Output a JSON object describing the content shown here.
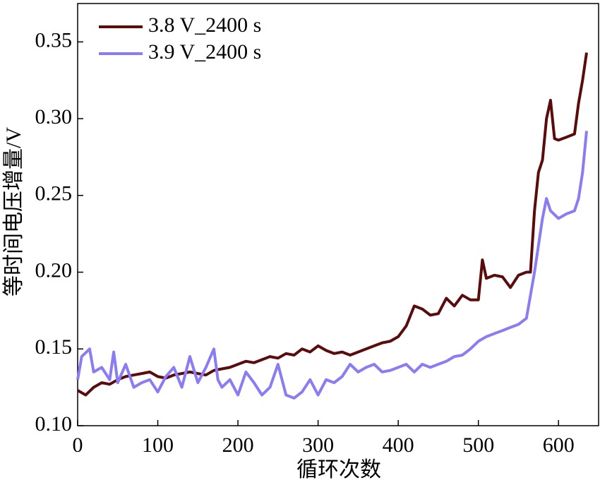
{
  "chart_data": {
    "type": "line",
    "x_label": "循环次数",
    "y_label": "等时间电压增量/V",
    "xlim": [
      0,
      650
    ],
    "ylim": [
      0.1,
      0.375
    ],
    "xticks": [
      0,
      100,
      200,
      300,
      400,
      500,
      600
    ],
    "yticks": [
      {
        "value": 0.1,
        "label": "0.10"
      },
      {
        "value": 0.15,
        "label": "0.15"
      },
      {
        "value": 0.2,
        "label": "0.20"
      },
      {
        "value": 0.25,
        "label": "0.25"
      },
      {
        "value": 0.3,
        "label": "0.30"
      },
      {
        "value": 0.35,
        "label": "0.35"
      }
    ],
    "legend": "upper left",
    "series": [
      {
        "name": "3.8 V_2400 s",
        "color": "#5a0c0c",
        "x": [
          0,
          10,
          20,
          30,
          40,
          50,
          60,
          70,
          80,
          90,
          100,
          110,
          120,
          130,
          140,
          150,
          160,
          170,
          180,
          190,
          200,
          210,
          220,
          230,
          240,
          250,
          260,
          270,
          280,
          290,
          300,
          310,
          320,
          330,
          340,
          350,
          360,
          370,
          380,
          390,
          400,
          410,
          420,
          430,
          440,
          450,
          460,
          470,
          480,
          490,
          500,
          505,
          510,
          520,
          530,
          540,
          550,
          560,
          565,
          570,
          575,
          580,
          585,
          590,
          595,
          600,
          610,
          620,
          625,
          630,
          635
        ],
        "values": [
          0.123,
          0.12,
          0.125,
          0.128,
          0.127,
          0.13,
          0.132,
          0.133,
          0.134,
          0.135,
          0.132,
          0.131,
          0.133,
          0.134,
          0.135,
          0.134,
          0.133,
          0.136,
          0.137,
          0.138,
          0.14,
          0.142,
          0.141,
          0.143,
          0.145,
          0.144,
          0.147,
          0.146,
          0.15,
          0.148,
          0.152,
          0.149,
          0.147,
          0.148,
          0.146,
          0.148,
          0.15,
          0.152,
          0.154,
          0.155,
          0.158,
          0.165,
          0.178,
          0.176,
          0.172,
          0.173,
          0.183,
          0.178,
          0.185,
          0.182,
          0.182,
          0.208,
          0.196,
          0.198,
          0.197,
          0.19,
          0.198,
          0.2,
          0.2,
          0.24,
          0.265,
          0.273,
          0.3,
          0.312,
          0.287,
          0.286,
          0.288,
          0.29,
          0.31,
          0.325,
          0.343
        ]
      },
      {
        "name": "3.9 V_2400 s",
        "color": "#8a7cf2",
        "x": [
          0,
          5,
          15,
          20,
          30,
          40,
          45,
          50,
          60,
          70,
          80,
          90,
          100,
          110,
          120,
          130,
          140,
          150,
          160,
          170,
          175,
          180,
          190,
          200,
          210,
          220,
          230,
          240,
          250,
          260,
          270,
          280,
          290,
          300,
          310,
          320,
          330,
          340,
          350,
          360,
          370,
          380,
          390,
          400,
          410,
          420,
          430,
          440,
          450,
          460,
          470,
          480,
          490,
          500,
          510,
          520,
          530,
          540,
          550,
          560,
          570,
          580,
          585,
          590,
          600,
          610,
          620,
          625,
          630,
          635
        ],
        "values": [
          0.13,
          0.145,
          0.15,
          0.135,
          0.138,
          0.13,
          0.148,
          0.128,
          0.14,
          0.125,
          0.128,
          0.13,
          0.122,
          0.132,
          0.138,
          0.125,
          0.145,
          0.128,
          0.138,
          0.15,
          0.13,
          0.125,
          0.13,
          0.12,
          0.135,
          0.128,
          0.12,
          0.125,
          0.14,
          0.12,
          0.118,
          0.122,
          0.13,
          0.12,
          0.13,
          0.128,
          0.132,
          0.14,
          0.135,
          0.138,
          0.14,
          0.135,
          0.136,
          0.138,
          0.14,
          0.135,
          0.14,
          0.138,
          0.14,
          0.142,
          0.145,
          0.146,
          0.15,
          0.155,
          0.158,
          0.16,
          0.162,
          0.164,
          0.166,
          0.17,
          0.2,
          0.235,
          0.248,
          0.24,
          0.235,
          0.238,
          0.24,
          0.248,
          0.265,
          0.292
        ]
      }
    ]
  }
}
